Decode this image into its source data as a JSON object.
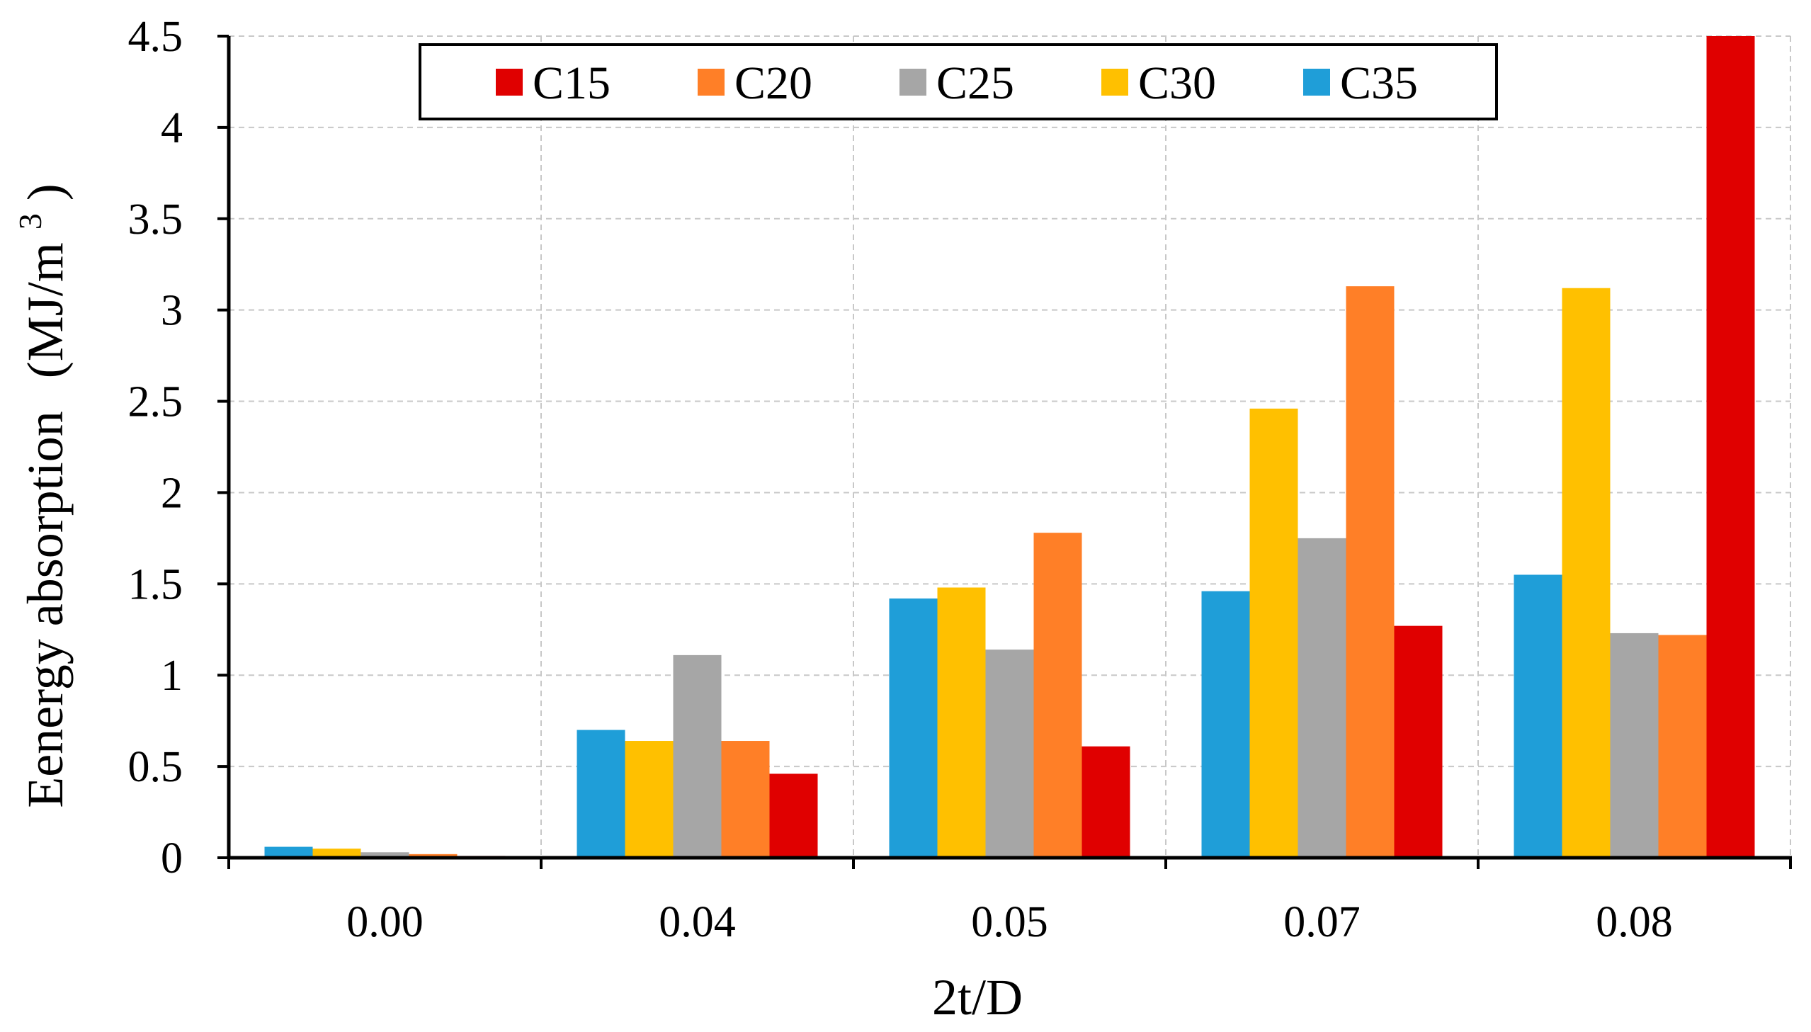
{
  "chart_data": {
    "type": "bar",
    "title": "",
    "xlabel": "2t/D",
    "ylabel": "Eenergy absorption",
    "ylabel_unit": "(MJ/m3)",
    "ylabel_unit_parts": {
      "open": "(MJ/m",
      "sup": "3",
      "close": ")"
    },
    "categories": [
      "0.00",
      "0.04",
      "0.05",
      "0.07",
      "0.08"
    ],
    "ylim": [
      0,
      4.5
    ],
    "yticks": [
      "0",
      "0.5",
      "1",
      "1.5",
      "2",
      "2.5",
      "3",
      "3.5",
      "4",
      "4.5"
    ],
    "grid": true,
    "legend_position": "top",
    "legend_order": [
      "C15",
      "C20",
      "C25",
      "C30",
      "C35"
    ],
    "series": [
      {
        "name": "C35",
        "color": "#1F9ED8",
        "values": [
          0.06,
          0.7,
          1.42,
          1.46,
          1.55
        ]
      },
      {
        "name": "C30",
        "color": "#FFC000",
        "values": [
          0.05,
          0.64,
          1.48,
          2.46,
          3.12
        ]
      },
      {
        "name": "C25",
        "color": "#A6A6A6",
        "values": [
          0.03,
          1.11,
          1.14,
          1.75,
          1.23
        ]
      },
      {
        "name": "C20",
        "color": "#FF7F27",
        "values": [
          0.02,
          0.64,
          1.78,
          3.13,
          1.22
        ]
      },
      {
        "name": "C15",
        "color": "#E00000",
        "values": [
          0.01,
          0.46,
          0.61,
          1.27,
          4.5
        ]
      }
    ]
  }
}
